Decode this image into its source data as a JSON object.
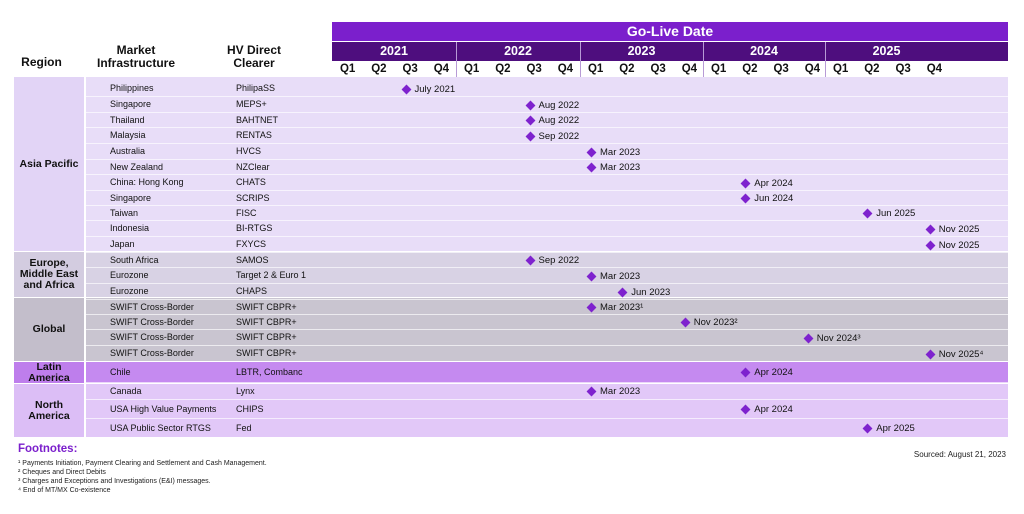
{
  "header": {
    "title": "Go-Live Date",
    "col_region": "Region",
    "col_infra": "Market\nInfrastructure",
    "col_clearer": "HV Direct\nClearer",
    "years": [
      "2021",
      "2022",
      "2023",
      "2024",
      "2025"
    ],
    "quarters": [
      "Q1",
      "Q2",
      "Q3",
      "Q4"
    ]
  },
  "colors": {
    "title_bar": "#7B1FCC",
    "year_bar": "#4E0E7E",
    "asia_pacific": "#E8DDF8",
    "emea": "#D8D2E4",
    "global": "#C9C5D0",
    "latin_america": "#C58AF0",
    "north_america": "#E2C8F8",
    "marker": "#7E22CE"
  },
  "regions": [
    {
      "name": "Asia Pacific",
      "color": "#E8DDF8",
      "label_color": "#E2D4F6"
    },
    {
      "name": "Europe,\nMiddle East\nand Africa",
      "color": "#D8D2E4",
      "label_color": "#D3CCE0"
    },
    {
      "name": "Global",
      "color": "#C9C5D0",
      "label_color": "#C3BECB"
    },
    {
      "name": "Latin\nAmerica",
      "color": "#C58AF0",
      "label_color": "#BE7EEC"
    },
    {
      "name": "North\nAmerica",
      "color": "#E2C8F8",
      "label_color": "#DCBEF6"
    }
  ],
  "chart_data": {
    "type": "table",
    "title": "Go-Live Date",
    "columns": [
      "Region",
      "Market Infrastructure",
      "HV Direct Clearer",
      "Go-Live Date"
    ],
    "rows": [
      {
        "region": "Asia Pacific",
        "infra": "Philippines",
        "clearer": "PhilipaSS",
        "year": 2021,
        "quarter": 3,
        "label": "July 2021"
      },
      {
        "region": "Asia Pacific",
        "infra": "Singapore",
        "clearer": "MEPS+",
        "year": 2022,
        "quarter": 3,
        "label": "Aug 2022"
      },
      {
        "region": "Asia Pacific",
        "infra": "Thailand",
        "clearer": "BAHTNET",
        "year": 2022,
        "quarter": 3,
        "label": "Aug 2022"
      },
      {
        "region": "Asia Pacific",
        "infra": "Malaysia",
        "clearer": "RENTAS",
        "year": 2022,
        "quarter": 3,
        "label": "Sep 2022"
      },
      {
        "region": "Asia Pacific",
        "infra": "Australia",
        "clearer": "HVCS",
        "year": 2023,
        "quarter": 1,
        "label": "Mar 2023"
      },
      {
        "region": "Asia Pacific",
        "infra": "New Zealand",
        "clearer": "NZClear",
        "year": 2023,
        "quarter": 1,
        "label": "Mar 2023"
      },
      {
        "region": "Asia Pacific",
        "infra": "China: Hong Kong",
        "clearer": "CHATS",
        "year": 2024,
        "quarter": 2,
        "label": "Apr 2024"
      },
      {
        "region": "Asia Pacific",
        "infra": "Singapore",
        "clearer": "SCRIPS",
        "year": 2024,
        "quarter": 2,
        "label": "Jun 2024"
      },
      {
        "region": "Asia Pacific",
        "infra": "Taiwan",
        "clearer": "FISC",
        "year": 2025,
        "quarter": 2,
        "label": "Jun 2025"
      },
      {
        "region": "Asia Pacific",
        "infra": "Indonesia",
        "clearer": "BI-RTGS",
        "year": 2025,
        "quarter": 4,
        "label": "Nov 2025"
      },
      {
        "region": "Asia Pacific",
        "infra": "Japan",
        "clearer": "FXYCS",
        "year": 2025,
        "quarter": 4,
        "label": "Nov 2025"
      },
      {
        "region": "Europe, Middle East and Africa",
        "infra": "South Africa",
        "clearer": "SAMOS",
        "year": 2022,
        "quarter": 3,
        "label": "Sep 2022"
      },
      {
        "region": "Europe, Middle East and Africa",
        "infra": "Eurozone",
        "clearer": "Target 2 & Euro 1",
        "year": 2023,
        "quarter": 1,
        "label": "Mar 2023"
      },
      {
        "region": "Europe, Middle East and Africa",
        "infra": "Eurozone",
        "clearer": "CHAPS",
        "year": 2023,
        "quarter": 2,
        "label": "Jun 2023"
      },
      {
        "region": "Global",
        "infra": "SWIFT Cross-Border",
        "clearer": "SWIFT CBPR+",
        "year": 2023,
        "quarter": 1,
        "label": "Mar 2023¹"
      },
      {
        "region": "Global",
        "infra": "SWIFT Cross-Border",
        "clearer": "SWIFT CBPR+",
        "year": 2023,
        "quarter": 4,
        "label": "Nov 2023²"
      },
      {
        "region": "Global",
        "infra": "SWIFT Cross-Border",
        "clearer": "SWIFT CBPR+",
        "year": 2024,
        "quarter": 4,
        "label": "Nov 2024³"
      },
      {
        "region": "Global",
        "infra": "SWIFT Cross-Border",
        "clearer": "SWIFT CBPR+",
        "year": 2025,
        "quarter": 4,
        "label": "Nov 2025⁴"
      },
      {
        "region": "Latin America",
        "infra": "Chile",
        "clearer": "LBTR, Combanc",
        "year": 2024,
        "quarter": 2,
        "label": "Apr 2024"
      },
      {
        "region": "North America",
        "infra": "Canada",
        "clearer": "Lynx",
        "year": 2023,
        "quarter": 1,
        "label": "Mar 2023"
      },
      {
        "region": "North America",
        "infra": "USA High Value Payments",
        "clearer": "CHIPS",
        "year": 2024,
        "quarter": 2,
        "label": "Apr 2024"
      },
      {
        "region": "North America",
        "infra": "USA Public Sector RTGS",
        "clearer": "Fed",
        "year": 2025,
        "quarter": 2,
        "label": "Apr 2025"
      }
    ]
  },
  "footnotes": {
    "title": "Footnotes:",
    "items": [
      "¹ Payments Initiation, Payment Clearing and Settlement and Cash Management.",
      "² Cheques and Direct Debits",
      "³ Charges and Exceptions and Investigations (E&I) messages.",
      "⁴ End of MT/MX Co-existence"
    ],
    "sourced": "Sourced: August 21, 2023"
  }
}
